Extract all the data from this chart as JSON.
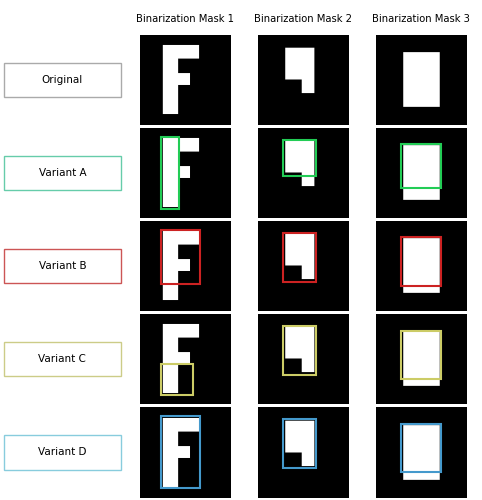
{
  "row_labels": [
    "Original",
    "Variant A",
    "Variant B",
    "Variant C",
    "Variant D"
  ],
  "col_labels": [
    "Binarization Mask 1",
    "Binarization Mask 2",
    "Binarization Mask 3"
  ],
  "label_box_colors": [
    "#aaaaaa",
    "#66ccaa",
    "#cc5555",
    "#cccc88",
    "#88ccdd"
  ],
  "variant_rect_colors": [
    "none",
    "#22cc55",
    "#cc2222",
    "#cccc66",
    "#4499cc"
  ],
  "figsize": [
    4.82,
    5.0
  ],
  "dpi": 100
}
